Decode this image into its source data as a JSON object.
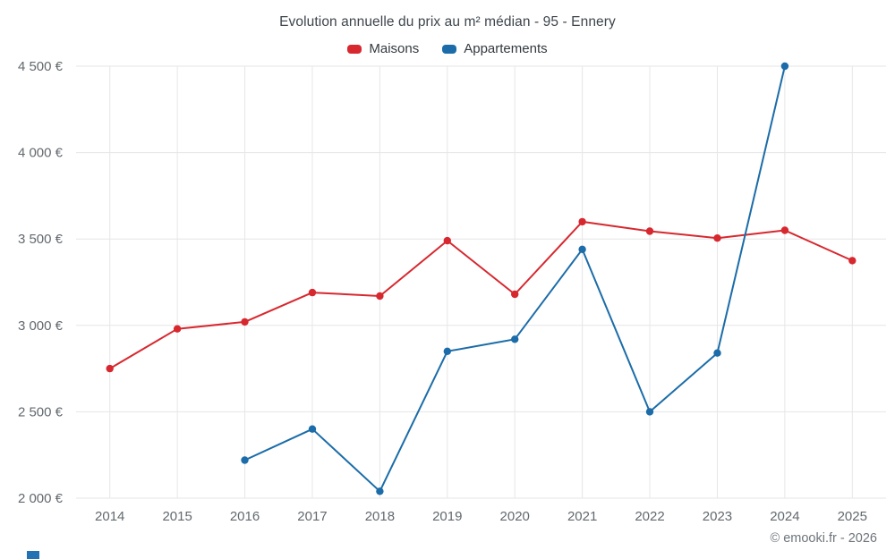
{
  "title": "Evolution annuelle du prix au m² médian - 95 - Ennery",
  "footer": "© emooki.fr - 2026",
  "colors": {
    "maisons": "#d7282f",
    "appartements": "#1b6ca8",
    "grid": "#e6e6e6",
    "tick_label": "#62696e",
    "corner_mark": "#2272b4"
  },
  "legend": {
    "items": [
      {
        "label": "Maisons",
        "color": "#d7282f"
      },
      {
        "label": "Appartements",
        "color": "#1b6ca8"
      }
    ]
  },
  "chart_data": {
    "type": "line",
    "title": "Evolution annuelle du prix au m² médian - 95 - Ennery",
    "categories": [
      "2014",
      "2015",
      "2016",
      "2017",
      "2018",
      "2019",
      "2020",
      "2021",
      "2022",
      "2023",
      "2024",
      "2025"
    ],
    "series": [
      {
        "name": "Maisons",
        "color": "#d7282f",
        "values": [
          2750,
          2980,
          3020,
          3190,
          3170,
          3490,
          3180,
          3600,
          3545,
          3505,
          3550,
          3375
        ]
      },
      {
        "name": "Appartements",
        "color": "#1b6ca8",
        "values": [
          null,
          null,
          2220,
          2400,
          2040,
          2850,
          2920,
          3440,
          2500,
          2840,
          4500,
          null
        ]
      }
    ],
    "ylim": [
      2000,
      4500
    ],
    "yticks": [
      2000,
      2500,
      3000,
      3500,
      4000,
      4500
    ],
    "ytick_labels": [
      "2 000 €",
      "2 500 €",
      "3 000 €",
      "3 500 €",
      "4 000 €",
      "4 500 €"
    ],
    "xlabel": "",
    "ylabel": "",
    "grid": true,
    "legend_position": "top"
  }
}
